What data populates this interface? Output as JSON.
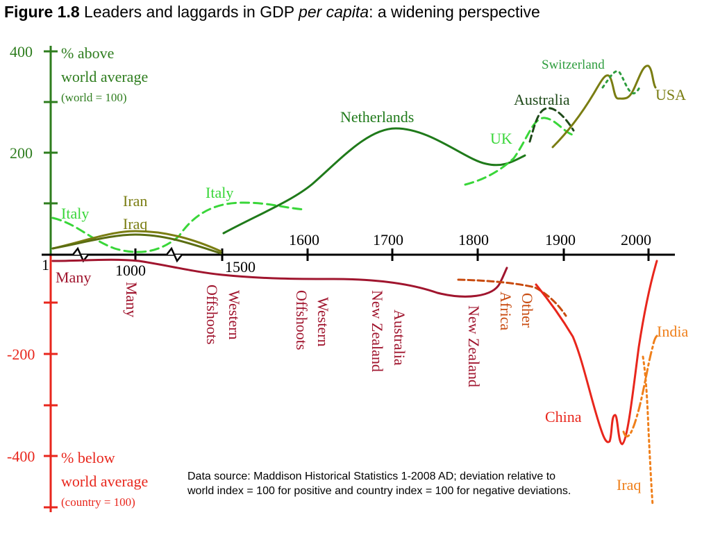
{
  "title": {
    "label": "Figure 1.8",
    "text_before": " Leaders and laggards in GDP ",
    "italic": "per capita",
    "text_after": ": a widening perspective"
  },
  "axis": {
    "y_ticks": [
      "400",
      "200",
      "-200",
      "-400"
    ],
    "upper_label": [
      "% above",
      "world average",
      "(world = 100)"
    ],
    "lower_label": [
      "% below",
      "world average",
      "(country = 100)"
    ],
    "x_labels": [
      "1",
      "1000",
      "1500",
      "1600",
      "1700",
      "1800",
      "1900",
      "2000"
    ]
  },
  "source_note": "Data source: Maddison Historical Statistics 1-2008 AD; deviation relative to world index = 100 for positive and country index = 100 for negative deviations.",
  "colors": {
    "upper_axis": "#2e7d1e",
    "lower_axis": "#e8261c",
    "dark_green": "#1f7a1a",
    "light_green": "#39d639",
    "olive": "#7a7d12",
    "maroon": "#a0152e",
    "red": "#e8261c",
    "brown_orange": "#c84a0e",
    "orange": "#ef7f1a"
  },
  "chart_data": {
    "type": "line",
    "title": "Leaders and laggards in GDP per capita: a widening perspective",
    "ylim": [
      -480,
      410
    ],
    "x_axis_note": "broken time axis: 1, 1000, 1500, then 1600-2000",
    "series": [
      {
        "name": "Italy",
        "style": "dashed light green",
        "points": [
          [
            1,
            75
          ],
          [
            250,
            40
          ],
          [
            600,
            0
          ],
          [
            1000,
            2
          ],
          [
            1300,
            30
          ],
          [
            1450,
            90
          ],
          [
            1500,
            98
          ],
          [
            1600,
            88
          ]
        ]
      },
      {
        "name": "Iran",
        "style": "solid olive",
        "points": [
          [
            1,
            12
          ],
          [
            1000,
            50
          ],
          [
            1300,
            35
          ],
          [
            1500,
            5
          ]
        ]
      },
      {
        "name": "Iraq",
        "style": "solid dark olive",
        "points": [
          [
            1,
            12
          ],
          [
            1000,
            42
          ],
          [
            1300,
            25
          ],
          [
            1500,
            2
          ]
        ]
      },
      {
        "name": "Netherlands",
        "style": "solid dark green",
        "points": [
          [
            1500,
            40
          ],
          [
            1580,
            110
          ],
          [
            1650,
            200
          ],
          [
            1700,
            250
          ],
          [
            1750,
            230
          ],
          [
            1800,
            180
          ],
          [
            1830,
            190
          ]
        ]
      },
      {
        "name": "UK",
        "style": "dashed light green",
        "points": [
          [
            1780,
            140
          ],
          [
            1820,
            165
          ],
          [
            1860,
            235
          ],
          [
            1900,
            270
          ]
        ]
      },
      {
        "name": "Australia",
        "style": "dashed dark green",
        "points": [
          [
            1860,
            190
          ],
          [
            1880,
            285
          ],
          [
            1900,
            270
          ],
          [
            1910,
            240
          ]
        ]
      },
      {
        "name": "USA",
        "style": "solid olive",
        "points": [
          [
            1880,
            215
          ],
          [
            1940,
            300
          ],
          [
            1950,
            345
          ],
          [
            1960,
            300
          ],
          [
            1980,
            310
          ],
          [
            2000,
            360
          ],
          [
            2008,
            330
          ]
        ]
      },
      {
        "name": "Switzerland",
        "style": "dotted dark green",
        "points": [
          [
            1945,
            330
          ],
          [
            1960,
            355
          ],
          [
            1975,
            330
          ],
          [
            1990,
            315
          ]
        ]
      },
      {
        "name": "Many",
        "style": "solid maroon",
        "points": [
          [
            1,
            -10
          ],
          [
            1000,
            -4
          ],
          [
            1300,
            -30
          ],
          [
            1500,
            -38
          ],
          [
            1700,
            -45
          ],
          [
            1800,
            -80
          ],
          [
            1830,
            -45
          ],
          [
            1850,
            -20
          ]
        ]
      },
      {
        "name": "Other Africa",
        "style": "dashed brown",
        "points": [
          [
            1780,
            -50
          ],
          [
            1850,
            -60
          ],
          [
            1900,
            -100
          ]
        ]
      },
      {
        "name": "China",
        "style": "solid red",
        "points": [
          [
            1880,
            -60
          ],
          [
            1920,
            -150
          ],
          [
            1950,
            -370
          ],
          [
            1960,
            -310
          ],
          [
            1975,
            -370
          ],
          [
            1990,
            -300
          ],
          [
            2008,
            -25
          ]
        ]
      },
      {
        "name": "India",
        "style": "dash-dot orange",
        "points": [
          [
            1980,
            -350
          ],
          [
            2000,
            -270
          ],
          [
            2008,
            -160
          ]
        ]
      },
      {
        "name": "Iraq",
        "style": "dotted orange",
        "points": [
          [
            1990,
            -190
          ],
          [
            2000,
            -300
          ],
          [
            2008,
            -470
          ]
        ]
      }
    ]
  },
  "series_labels": [
    {
      "text": "Italy",
      "color": "#39d639"
    },
    {
      "text": "Iran",
      "color": "#7a7d12"
    },
    {
      "text": "Iraq",
      "color": "#7a7d12"
    },
    {
      "text": "Italy",
      "color": "#39d639"
    },
    {
      "text": "Netherlands",
      "color": "#1f7a1a"
    },
    {
      "text": "UK",
      "color": "#39d639"
    },
    {
      "text": "Australia",
      "color": "#1f4a1a"
    },
    {
      "text": "Switzerland",
      "color": "#2e9d3e"
    },
    {
      "text": "USA",
      "color": "#7a7d12"
    },
    {
      "text": "Many",
      "color": "#a0152e"
    },
    {
      "text": "China",
      "color": "#e8261c"
    },
    {
      "text": "India",
      "color": "#ef7f1a"
    },
    {
      "text": "Iraq",
      "color": "#ef7f1a"
    }
  ],
  "vertical_labels": [
    {
      "lines": [
        "Many"
      ],
      "color": "#a0152e"
    },
    {
      "lines": [
        "Western",
        "Offshoots"
      ],
      "color": "#a0152e"
    },
    {
      "lines": [
        "Western",
        "Offshoots"
      ],
      "color": "#a0152e"
    },
    {
      "lines": [
        "Australia",
        "New Zealand"
      ],
      "color": "#a0152e"
    },
    {
      "lines": [
        "New Zealand"
      ],
      "color": "#a0152e"
    },
    {
      "lines": [
        "Other",
        "Africa"
      ],
      "color": "#c84a0e"
    }
  ]
}
